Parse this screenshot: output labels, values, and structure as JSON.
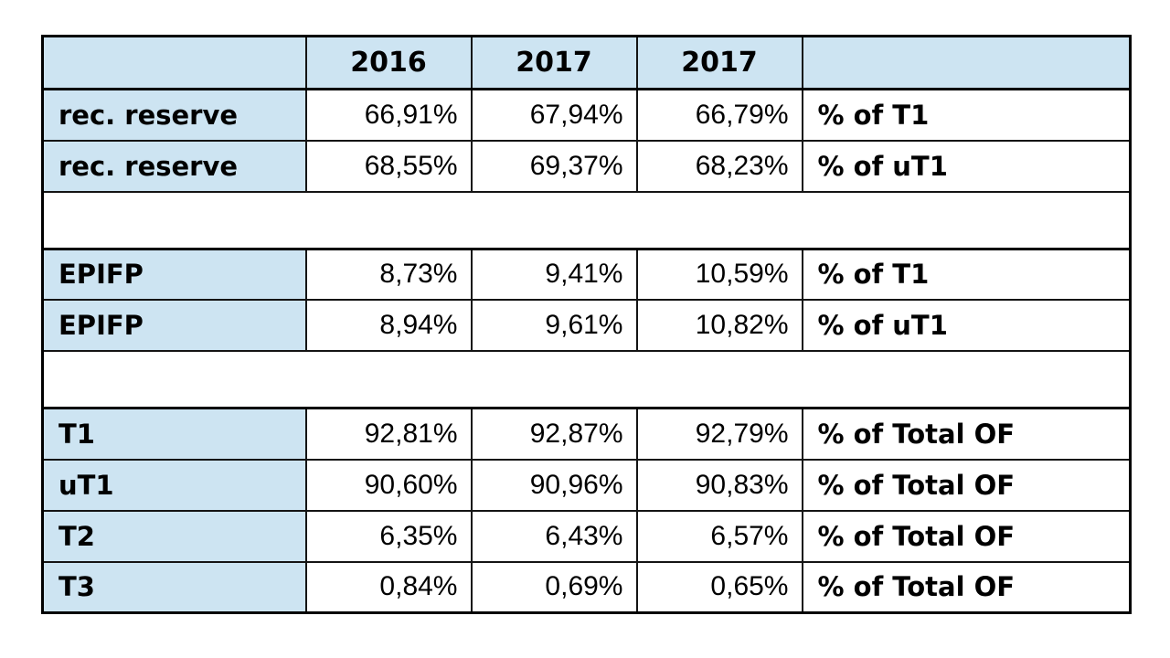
{
  "colors": {
    "header_bg": "#cde4f2",
    "label_bg": "#cde4f2",
    "cell_bg": "#ffffff",
    "border": "#000000",
    "text": "#000000"
  },
  "chart_data": {
    "type": "table",
    "columns": [
      "",
      "2016",
      "2017",
      "2017",
      ""
    ],
    "rows": [
      {
        "type": "data",
        "label": "rec. reserve",
        "values": [
          "66,91%",
          "67,94%",
          "66,79%"
        ],
        "desc": "% of T1"
      },
      {
        "type": "data",
        "label": "rec. reserve",
        "values": [
          "68,55%",
          "69,37%",
          "68,23%"
        ],
        "desc": "% of uT1"
      },
      {
        "type": "spacer"
      },
      {
        "type": "data",
        "label": "EPIFP",
        "values": [
          "8,73%",
          "9,41%",
          "10,59%"
        ],
        "desc": "% of T1"
      },
      {
        "type": "data",
        "label": "EPIFP",
        "values": [
          "8,94%",
          "9,61%",
          "10,82%"
        ],
        "desc": "% of uT1"
      },
      {
        "type": "spacer"
      },
      {
        "type": "data",
        "label": "T1",
        "values": [
          "92,81%",
          "92,87%",
          "92,79%"
        ],
        "desc": "% of Total OF"
      },
      {
        "type": "data",
        "label": "uT1",
        "values": [
          "90,60%",
          "90,96%",
          "90,83%"
        ],
        "desc": "% of Total OF"
      },
      {
        "type": "data",
        "label": "T2",
        "values": [
          "6,35%",
          "6,43%",
          "6,57%"
        ],
        "desc": "% of Total OF"
      },
      {
        "type": "data",
        "label": "T3",
        "values": [
          "0,84%",
          "0,69%",
          "0,65%"
        ],
        "desc": "% of Total OF"
      }
    ]
  }
}
